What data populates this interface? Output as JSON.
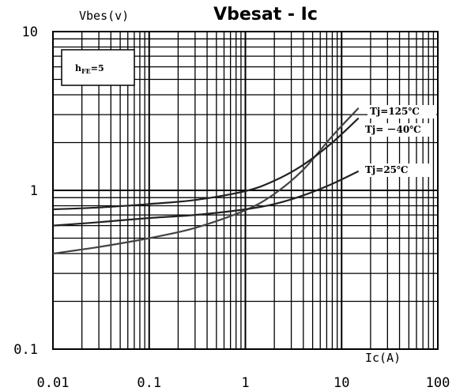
{
  "chart_data": {
    "type": "line",
    "title": "Vbesat - Ic",
    "ylabel": "Vbes(v)",
    "xlabel": "Ic(A)",
    "x_scale": "log",
    "y_scale": "log",
    "xlim": [
      0.01,
      100
    ],
    "ylim": [
      0.1,
      10
    ],
    "x_tick_labels": [
      "0.01",
      "0.1",
      "1",
      "10",
      "100"
    ],
    "y_tick_labels": [
      "0.1",
      "1",
      "10"
    ],
    "grid": true,
    "annotation": {
      "prefix": "h",
      "sub": "FE",
      "suffix": "=5"
    },
    "series": [
      {
        "name": "Tj=125℃",
        "color": "#444444",
        "x": [
          0.01,
          0.03,
          0.1,
          0.3,
          1,
          2,
          4,
          8,
          15
        ],
        "y": [
          0.4,
          0.44,
          0.5,
          0.58,
          0.75,
          0.95,
          1.35,
          2.2,
          3.3
        ]
      },
      {
        "name": "Tj= －40℃",
        "color": "#222222",
        "x": [
          0.01,
          0.03,
          0.1,
          0.3,
          1,
          2,
          4,
          8,
          15
        ],
        "y": [
          0.76,
          0.78,
          0.82,
          0.87,
          0.99,
          1.15,
          1.45,
          2.0,
          2.85
        ]
      },
      {
        "name": "Tj=25℃",
        "color": "#222222",
        "x": [
          0.01,
          0.03,
          0.1,
          0.3,
          1,
          2,
          4,
          8,
          15
        ],
        "y": [
          0.6,
          0.63,
          0.67,
          0.7,
          0.76,
          0.82,
          0.93,
          1.1,
          1.32
        ]
      }
    ]
  }
}
